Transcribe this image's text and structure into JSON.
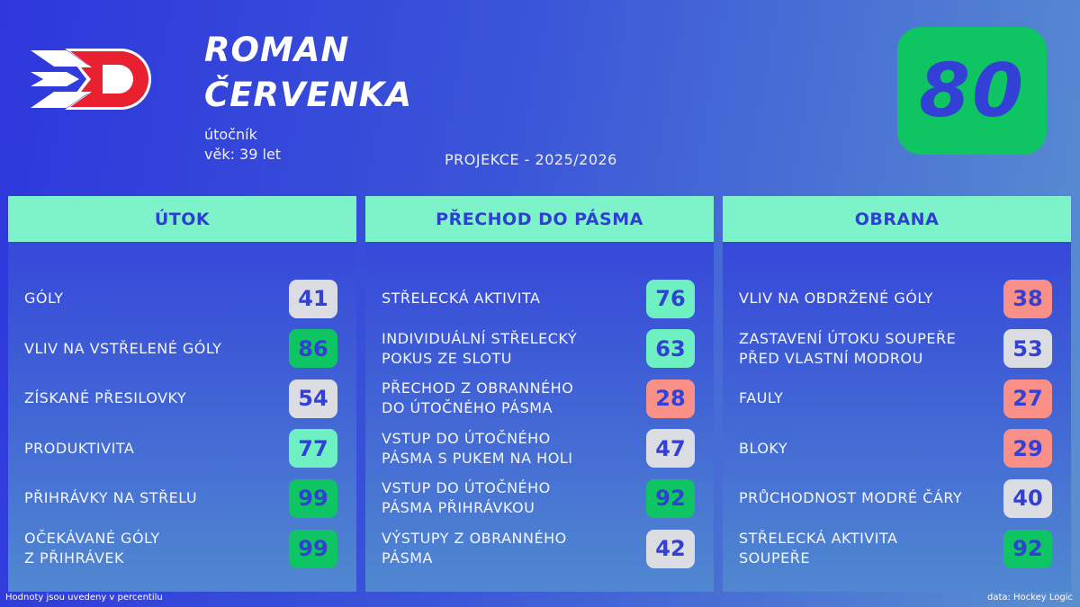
{
  "logo": {
    "name": "team-logo-d",
    "colors": {
      "red": "#e8202f",
      "white": "#ffffff"
    }
  },
  "player": {
    "first_name": "ROMAN",
    "last_name": "ČERVENKA",
    "position": "útočník",
    "age": "věk: 39 let"
  },
  "projection": "PROJEKCE - 2025/2026",
  "overall": {
    "value": "80",
    "color": "#0fc463"
  },
  "colors": {
    "background": "#2e37dc",
    "header": "#7ef2c8",
    "text_accent": "#3340d6",
    "high": "#0fc463",
    "above": "#6ef0c3",
    "average": "#dcdde3",
    "low": "#f99088"
  },
  "panels": [
    {
      "title": "ÚTOK",
      "items": [
        {
          "label": "GÓLY",
          "value": "41",
          "color": "#dcdde3"
        },
        {
          "label": "VLIV NA VSTŘELENÉ GÓLY",
          "value": "86",
          "color": "#0fc463"
        },
        {
          "label": "ZÍSKANÉ PŘESILOVKY",
          "value": "54",
          "color": "#dcdde3"
        },
        {
          "label": "PRODUKTIVITA",
          "value": "77",
          "color": "#6ef0c3"
        },
        {
          "label": "PŘIHRÁVKY NA STŘELU",
          "value": "99",
          "color": "#0fc463"
        },
        {
          "label": "OČEKÁVANÉ GÓLY\nZ PŘIHRÁVEK",
          "value": "99",
          "color": "#0fc463"
        }
      ]
    },
    {
      "title": "PŘECHOD DO PÁSMA",
      "items": [
        {
          "label": "STŘELECKÁ AKTIVITA",
          "value": "76",
          "color": "#6ef0c3"
        },
        {
          "label": "INDIVIDUÁLNÍ STŘELECKÝ\nPOKUS ZE SLOTU",
          "value": "63",
          "color": "#6ef0c3"
        },
        {
          "label": "PŘECHOD Z OBRANNÉHO\nDO ÚTOČNÉHO PÁSMA",
          "value": "28",
          "color": "#f99088"
        },
        {
          "label": "VSTUP DO ÚTOČNÉHO\nPÁSMA S PUKEM NA HOLI",
          "value": "47",
          "color": "#dcdde3"
        },
        {
          "label": "VSTUP DO ÚTOČNÉHO\nPÁSMA PŘIHRÁVKOU",
          "value": "92",
          "color": "#0fc463"
        },
        {
          "label": "VÝSTUPY Z OBRANNÉHO\nPÁSMA",
          "value": "42",
          "color": "#dcdde3"
        }
      ]
    },
    {
      "title": "OBRANA",
      "items": [
        {
          "label": "VLIV NA OBDRŽENÉ GÓLY",
          "value": "38",
          "color": "#f99088"
        },
        {
          "label": "ZASTAVENÍ ÚTOKU SOUPEŘE\nPŘED VLASTNÍ MODROU",
          "value": "53",
          "color": "#dcdde3"
        },
        {
          "label": "FAULY",
          "value": "27",
          "color": "#f99088"
        },
        {
          "label": "BLOKY",
          "value": "29",
          "color": "#f99088"
        },
        {
          "label": "PRŮCHODNOST MODRÉ ČÁRY",
          "value": "40",
          "color": "#dcdde3"
        },
        {
          "label": "STŘELECKÁ AKTIVITA\nSOUPEŘE",
          "value": "92",
          "color": "#0fc463"
        }
      ]
    }
  ],
  "footer": {
    "note": "Hodnoty jsou uvedeny v percentilu",
    "source": "data: Hockey Logic"
  }
}
